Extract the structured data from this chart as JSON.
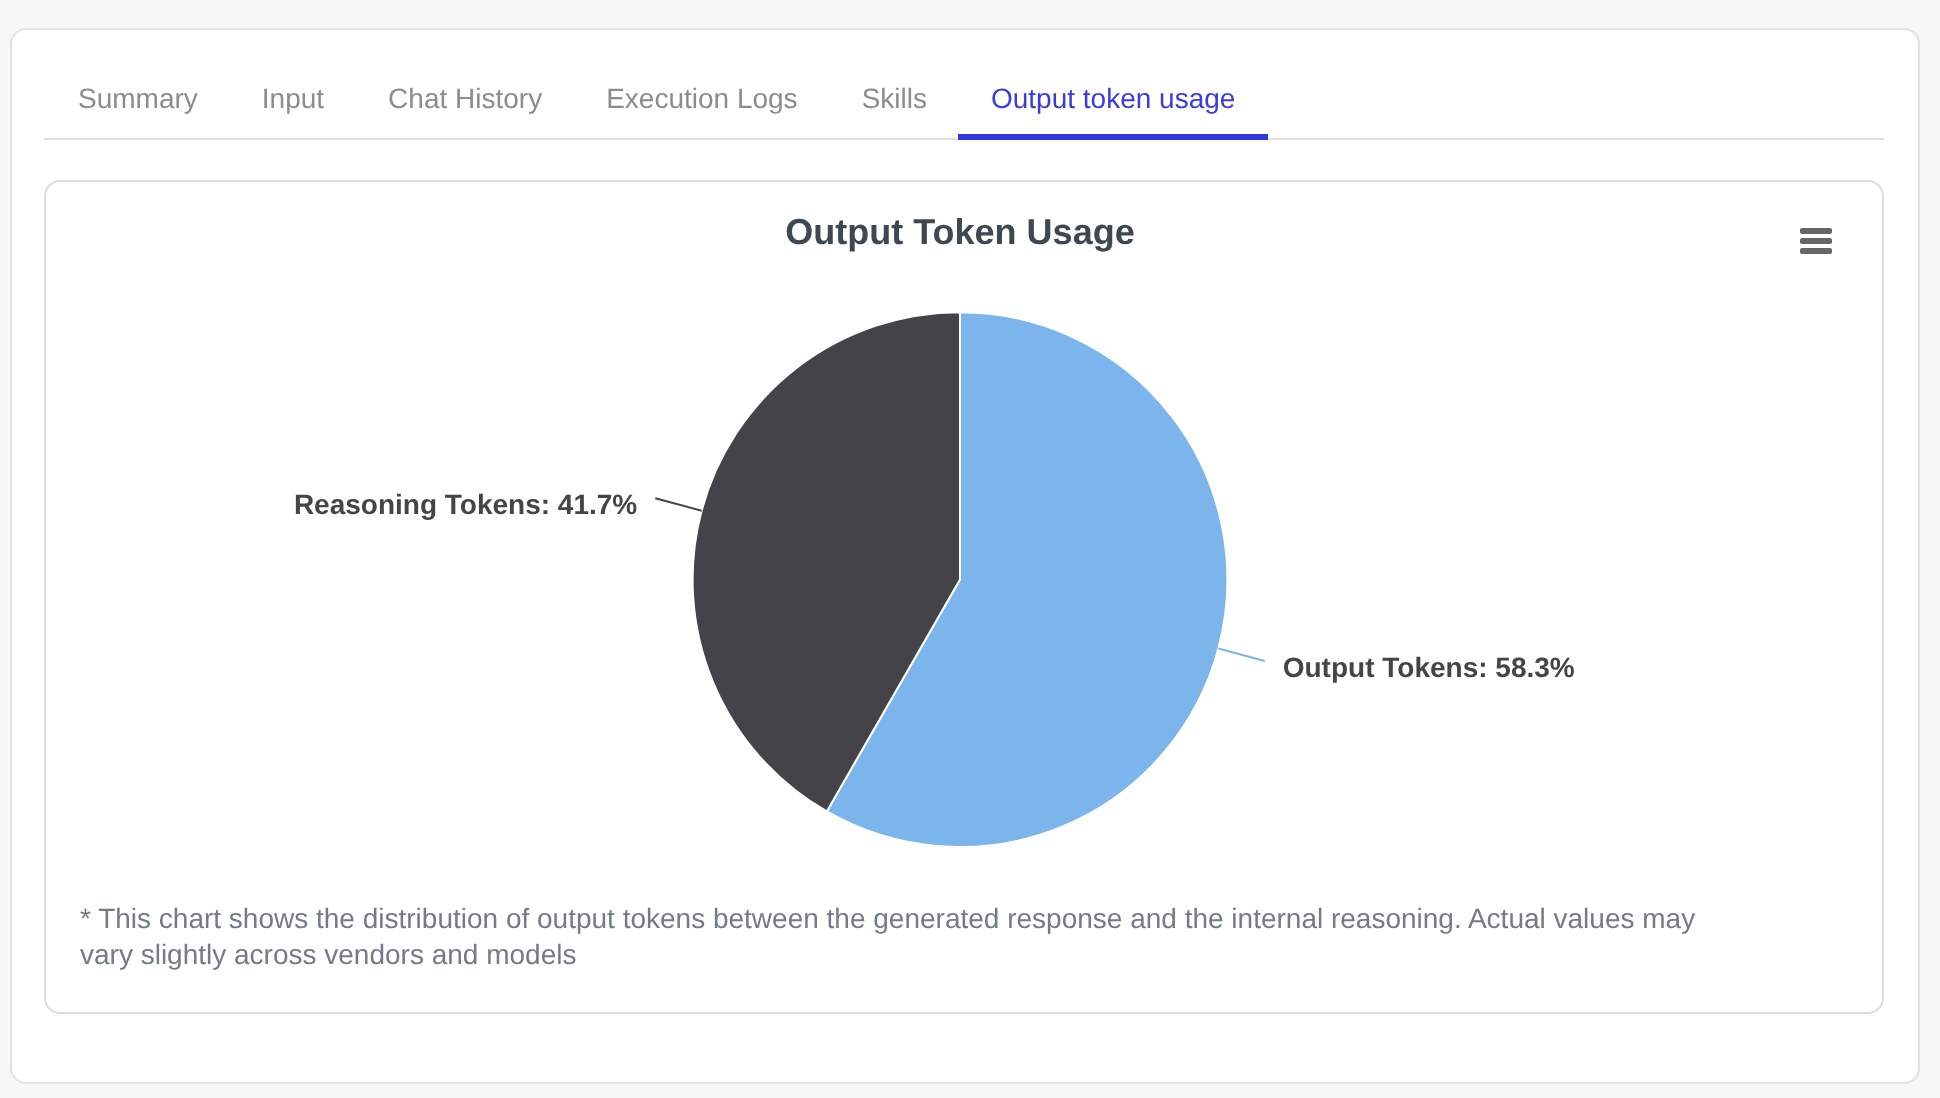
{
  "chart_data": {
    "type": "pie",
    "title": "Output Token Usage",
    "categories": [
      "Output Tokens",
      "Reasoning Tokens"
    ],
    "values": [
      58.3,
      41.7
    ],
    "colors": [
      "#7cb5ec",
      "#434348"
    ],
    "value_labels": [
      "58.3%",
      "41.7%"
    ],
    "annotations": [
      "Summary",
      "Input",
      "Chat History",
      "Execution Logs",
      "Skills",
      "Output token usage",
      "* This chart shows the distribution of output tokens between the generated response and the internal reasoning. Actual values may vary slightly across vendors and models"
    ]
  }
}
